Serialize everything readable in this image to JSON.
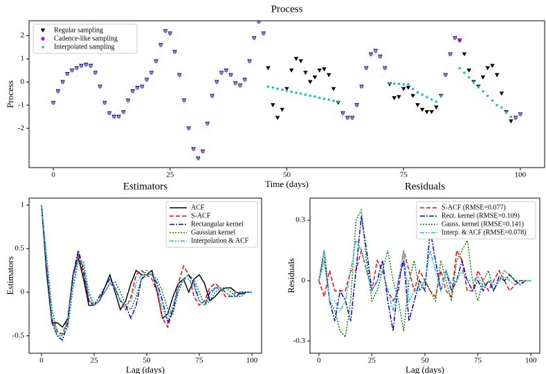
{
  "chart_data": [
    {
      "type": "scatter",
      "title": "Process",
      "xlabel": "Time (days)",
      "ylabel": "Process",
      "xlim": [
        -5.2,
        105.2
      ],
      "ylim": [
        -3.7,
        2.65
      ],
      "xticks": [
        0,
        25,
        50,
        75,
        100
      ],
      "yticks": [
        2,
        1,
        0,
        -1,
        -2
      ],
      "legend": "upper left",
      "series": [
        {
          "name": "Regular sampling",
          "color": "#000000",
          "marker": "triangle-down",
          "x": [
            0,
            1,
            2,
            3,
            4,
            5,
            6,
            7,
            8,
            9,
            10,
            11,
            12,
            13,
            14,
            15,
            16,
            17,
            18,
            19,
            20,
            21,
            22,
            23,
            24,
            25,
            26,
            27,
            28,
            29,
            30,
            31,
            32,
            33,
            34,
            35,
            36,
            37,
            38,
            39,
            40,
            41,
            42,
            43,
            44,
            45,
            46,
            47,
            48,
            49,
            50,
            51,
            52,
            53,
            54,
            55,
            56,
            57,
            58,
            59,
            60,
            61,
            62,
            63,
            64,
            65,
            66,
            67,
            68,
            69,
            70,
            71,
            72,
            73,
            74,
            75,
            76,
            77,
            78,
            79,
            80,
            81,
            82,
            83,
            84,
            85,
            86,
            87,
            88,
            89,
            90,
            91,
            92,
            93,
            94,
            95,
            96,
            97,
            98,
            99,
            100
          ],
          "values": [
            -0.9,
            -0.4,
            0,
            0.35,
            0.5,
            0.6,
            0.7,
            0.75,
            0.7,
            0.4,
            -0.2,
            -0.9,
            -1.35,
            -1.5,
            -1.5,
            -1.3,
            -0.8,
            -0.4,
            -0.25,
            -0.2,
            0.1,
            0.4,
            0.9,
            1.6,
            2.2,
            2.1,
            1.3,
            0.3,
            -0.8,
            -2.0,
            -2.9,
            -3.3,
            -3.0,
            -1.8,
            -0.6,
            0.0,
            0.4,
            0.5,
            0.3,
            -0.05,
            -0.15,
            0.1,
            0.9,
            1.9,
            2.6,
            2.1,
            0.6,
            -1.0,
            -1.55,
            -1.2,
            -0.3,
            0.5,
            1.0,
            0.9,
            0.4,
            0.0,
            0.2,
            0.5,
            0.55,
            0.3,
            -0.3,
            -0.9,
            -1.35,
            -1.55,
            -1.55,
            -1.0,
            -0.2,
            0.6,
            1.2,
            1.35,
            1.1,
            0.6,
            -0.1,
            -0.7,
            -0.65,
            -0.3,
            -0.25,
            -0.6,
            -1.0,
            -1.2,
            -1.3,
            -1.3,
            -1.1,
            -0.6,
            0.3,
            1.2,
            1.9,
            1.8,
            1.2,
            0.5,
            0.0,
            -0.2,
            0.2,
            0.6,
            0.7,
            0.3,
            -0.5,
            -1.3,
            -1.7,
            -1.55,
            -1.4
          ]
        },
        {
          "name": "Cadence-like sampling",
          "color": "#cc00cc",
          "marker": "circle",
          "x": [
            0,
            1,
            2,
            3,
            4,
            5,
            6,
            7,
            8,
            9,
            10,
            11,
            12,
            13,
            14,
            15,
            16,
            17,
            18,
            19,
            20,
            21,
            22,
            23,
            24,
            25,
            26,
            27,
            28,
            29,
            30,
            31,
            32,
            33,
            34,
            35,
            36,
            37,
            38,
            39,
            40,
            41,
            42,
            43,
            44,
            45,
            62,
            63,
            64,
            65,
            66,
            67,
            68,
            69,
            70,
            71,
            84,
            85,
            86,
            87,
            99,
            100
          ],
          "values": [
            -0.9,
            -0.4,
            0,
            0.35,
            0.5,
            0.6,
            0.7,
            0.75,
            0.7,
            0.4,
            -0.2,
            -0.9,
            -1.35,
            -1.5,
            -1.5,
            -1.3,
            -0.8,
            -0.4,
            -0.25,
            -0.2,
            0.1,
            0.4,
            0.9,
            1.6,
            2.2,
            2.1,
            1.3,
            0.3,
            -0.8,
            -2.0,
            -2.9,
            -3.3,
            -3.0,
            -1.8,
            -0.6,
            0.0,
            0.4,
            0.5,
            0.3,
            -0.05,
            -0.15,
            0.1,
            0.9,
            1.9,
            2.6,
            2.1,
            -1.35,
            -1.55,
            -1.55,
            -1.0,
            -0.2,
            0.6,
            1.2,
            1.35,
            1.1,
            0.6,
            0.3,
            1.2,
            1.9,
            1.8,
            -1.55,
            -1.4
          ]
        },
        {
          "name": "Interpolated sampling",
          "color": "#17becf",
          "marker": "square",
          "x": [
            0,
            1,
            2,
            3,
            4,
            5,
            6,
            7,
            8,
            9,
            10,
            11,
            12,
            13,
            14,
            15,
            16,
            17,
            18,
            19,
            20,
            21,
            22,
            23,
            24,
            25,
            26,
            27,
            28,
            29,
            30,
            31,
            32,
            33,
            34,
            35,
            36,
            37,
            38,
            39,
            40,
            41,
            42,
            43,
            44,
            45,
            46,
            47,
            48,
            49,
            50,
            51,
            52,
            53,
            54,
            55,
            56,
            57,
            58,
            59,
            60,
            61,
            62,
            63,
            64,
            65,
            66,
            67,
            68,
            69,
            70,
            71,
            72,
            73,
            74,
            75,
            76,
            77,
            78,
            79,
            80,
            81,
            82,
            83,
            84,
            85,
            86,
            87,
            88,
            89,
            90,
            91,
            92,
            93,
            94,
            95,
            96,
            97,
            98,
            99,
            100
          ],
          "values": [
            -0.9,
            -0.4,
            0,
            0.35,
            0.5,
            0.6,
            0.7,
            0.75,
            0.7,
            0.4,
            -0.2,
            -0.9,
            -1.35,
            -1.5,
            -1.5,
            -1.3,
            -0.8,
            -0.4,
            -0.25,
            -0.2,
            0.1,
            0.4,
            0.9,
            1.6,
            2.2,
            2.1,
            1.3,
            0.3,
            -0.8,
            -2.0,
            -2.9,
            -3.3,
            -3.0,
            -1.8,
            -0.6,
            0.0,
            0.4,
            0.5,
            0.3,
            -0.05,
            -0.15,
            0.1,
            0.9,
            1.9,
            2.6,
            2.1,
            -0.2,
            -0.24,
            -0.29,
            -0.33,
            -0.37,
            -0.42,
            -0.46,
            -0.5,
            -0.55,
            -0.59,
            -0.63,
            -0.68,
            -0.72,
            -0.76,
            -0.81,
            -0.85,
            -1.35,
            -1.55,
            -1.55,
            -1.0,
            -0.2,
            0.6,
            1.2,
            1.35,
            1.1,
            0.6,
            -0.05,
            -0.07,
            -0.08,
            -0.1,
            -0.1,
            -0.3,
            -0.45,
            -0.55,
            -0.65,
            -0.75,
            -0.85,
            -0.6,
            0.3,
            1.2,
            1.9,
            0.6,
            0.4,
            0.2,
            0.0,
            -0.2,
            -0.4,
            -0.6,
            -0.8,
            -1.0,
            -1.1,
            -1.3,
            -1.5,
            -1.55,
            -1.4
          ]
        }
      ]
    },
    {
      "type": "line",
      "title": "Estimators",
      "xlabel": "Lag (days)",
      "ylabel": "Estimators",
      "xlim": [
        -5.9,
        104.6
      ],
      "ylim": [
        -0.7,
        1.08
      ],
      "xticks": [
        0,
        25,
        50,
        75,
        100
      ],
      "yticks": [
        1,
        0.5,
        0,
        -0.5
      ],
      "legend": "upper right",
      "x": [
        0,
        2.5,
        5,
        7.5,
        10,
        12.5,
        15,
        17.5,
        20,
        22.5,
        25,
        27.5,
        30,
        32.5,
        35,
        37.5,
        40,
        42.5,
        45,
        47.5,
        50,
        52.5,
        55,
        57.5,
        60,
        62.5,
        65,
        67.5,
        70,
        72.5,
        75,
        77.5,
        80,
        82.5,
        85,
        87.5,
        90,
        92.5,
        95,
        97.5,
        100
      ],
      "series": [
        {
          "name": "ACF",
          "color": "#000000",
          "linestyle": "solid",
          "values": [
            1,
            0.2,
            -0.35,
            -0.35,
            -0.4,
            -0.3,
            0.2,
            0.4,
            0.15,
            -0.15,
            -0.15,
            -0.1,
            0.05,
            0.2,
            0.0,
            -0.2,
            -0.1,
            0.1,
            0.25,
            0.2,
            0.2,
            0.25,
            0.0,
            -0.3,
            -0.25,
            -0.05,
            0.1,
            0.15,
            0.0,
            0.15,
            0.2,
            0.1,
            -0.1,
            -0.05,
            0.02,
            0.05,
            0.05,
            0.0,
            -0.02,
            0.0,
            0.0
          ]
        },
        {
          "name": "S-ACF",
          "color": "#ff0000",
          "linestyle": "dashed",
          "values": [
            1,
            0.3,
            -0.3,
            -0.45,
            -0.48,
            -0.3,
            0.2,
            0.45,
            0.2,
            -0.1,
            -0.15,
            -0.1,
            0.0,
            0.1,
            0.05,
            -0.1,
            -0.2,
            -0.05,
            0.2,
            0.25,
            0.2,
            0.15,
            0.0,
            -0.3,
            -0.4,
            -0.2,
            0.1,
            0.3,
            0.2,
            -0.05,
            -0.15,
            -0.1,
            0.05,
            0.1,
            0.05,
            -0.05,
            -0.05,
            0.0,
            0.0,
            0.0,
            0.0
          ]
        },
        {
          "name": "Rectangular kernel",
          "color": "#0000cc",
          "linestyle": "dashdot",
          "values": [
            1,
            0.25,
            -0.35,
            -0.5,
            -0.55,
            -0.35,
            0.2,
            0.48,
            0.25,
            -0.1,
            -0.15,
            -0.05,
            0.05,
            0.15,
            0.05,
            -0.1,
            -0.15,
            -0.3,
            -0.15,
            0.15,
            0.2,
            0.2,
            0.1,
            -0.1,
            -0.35,
            -0.2,
            0.05,
            0.15,
            0.2,
            0.1,
            -0.1,
            -0.15,
            0.0,
            0.05,
            0.05,
            0.0,
            -0.05,
            -0.05,
            0.0,
            0.0,
            0.0
          ]
        },
        {
          "name": "Gaussian kernel",
          "color": "#008000",
          "linestyle": "dotted",
          "values": [
            1,
            0.4,
            -0.2,
            -0.45,
            -0.5,
            -0.4,
            0.05,
            0.35,
            0.35,
            0.0,
            -0.15,
            -0.1,
            0.0,
            0.1,
            0.12,
            0.0,
            -0.15,
            -0.2,
            -0.05,
            0.15,
            0.25,
            0.2,
            0.15,
            0.0,
            -0.2,
            -0.25,
            0.0,
            0.15,
            0.2,
            0.15,
            0.0,
            -0.15,
            -0.1,
            0.0,
            0.05,
            0.05,
            0.0,
            -0.05,
            -0.05,
            0.0,
            0.0
          ]
        },
        {
          "name": "Interpolation & ACF",
          "color": "#17becf",
          "linestyle": "dashdotdot",
          "values": [
            1,
            0.3,
            -0.3,
            -0.5,
            -0.5,
            -0.3,
            0.1,
            0.4,
            0.3,
            -0.05,
            -0.15,
            -0.1,
            0.0,
            0.1,
            0.05,
            -0.1,
            -0.15,
            -0.1,
            0.1,
            0.2,
            0.2,
            0.2,
            0.05,
            -0.2,
            -0.3,
            -0.15,
            0.05,
            0.15,
            0.15,
            0.05,
            -0.1,
            -0.15,
            -0.05,
            0.05,
            0.05,
            0.0,
            -0.05,
            0.0,
            0.0,
            0.0,
            0.0
          ]
        }
      ]
    },
    {
      "type": "line",
      "title": "Residuals",
      "xlabel": "Lag (days)",
      "ylabel": "Residuals",
      "xlim": [
        -4.2,
        104.2
      ],
      "ylim": [
        -0.36,
        0.41
      ],
      "xticks": [
        0,
        25,
        50,
        75,
        100
      ],
      "yticks": [
        0.3,
        0,
        -0.3
      ],
      "legend": "upper right",
      "x": [
        0,
        2.5,
        5,
        7.5,
        10,
        12.5,
        15,
        17.5,
        20,
        22.5,
        25,
        27.5,
        30,
        32.5,
        35,
        37.5,
        40,
        42.5,
        45,
        47.5,
        50,
        52.5,
        55,
        57.5,
        60,
        62.5,
        65,
        67.5,
        70,
        72.5,
        75,
        77.5,
        80,
        82.5,
        85,
        87.5,
        90,
        92.5,
        95,
        97.5,
        100
      ],
      "series": [
        {
          "name": "S-ACF (RMSE=0.077)",
          "color": "#ff0000",
          "linestyle": "dashed",
          "values": [
            0,
            -0.08,
            0.05,
            -0.05,
            -0.05,
            -0.05,
            0.05,
            0.05,
            0.15,
            0.05,
            -0.05,
            0.1,
            0.05,
            -0.05,
            -0.1,
            -0.05,
            0.15,
            0.05,
            -0.05,
            0.05,
            0.0,
            -0.05,
            -0.08,
            0.05,
            -0.05,
            -0.08,
            0.15,
            0.1,
            -0.05,
            -0.05,
            0.05,
            0.0,
            -0.05,
            0.0,
            0.05,
            0.0,
            -0.05,
            -0.02,
            0.0,
            0.0,
            0.0
          ]
        },
        {
          "name": "Rect. kernel (RMSE=0.109)",
          "color": "#0000cc",
          "linestyle": "dashdot",
          "values": [
            0,
            0.15,
            -0.1,
            -0.2,
            -0.05,
            -0.1,
            -0.2,
            0.05,
            0.32,
            0.15,
            -0.05,
            0.0,
            0.1,
            -0.1,
            -0.25,
            0.0,
            0.1,
            -0.2,
            -0.1,
            0.0,
            -0.05,
            0.25,
            0.1,
            -0.05,
            0.05,
            -0.05,
            0.0,
            0.1,
            0.0,
            -0.05,
            0.0,
            -0.05,
            0.0,
            -0.05,
            0.02,
            0.0,
            0.03,
            0.0,
            -0.02,
            0.0,
            0.0
          ]
        },
        {
          "name": "Gauss. kernel (RMSE=0.141)",
          "color": "#008000",
          "linestyle": "dotted",
          "values": [
            0,
            0.1,
            -0.1,
            -0.15,
            -0.25,
            -0.28,
            -0.1,
            0.3,
            0.35,
            0.1,
            -0.1,
            -0.05,
            0.05,
            0.15,
            0.0,
            -0.1,
            -0.25,
            0.0,
            0.1,
            -0.05,
            0.0,
            -0.05,
            -0.1,
            0.1,
            0.0,
            -0.1,
            0.1,
            0.15,
            0.2,
            0.0,
            -0.1,
            0.0,
            0.05,
            -0.05,
            0.0,
            0.05,
            0.03,
            0.0,
            0.0,
            0.0,
            0.0
          ]
        },
        {
          "name": "Interp. & ACF (RMSE=0.078)",
          "color": "#17becf",
          "linestyle": "dashdotdot",
          "values": [
            0,
            0.15,
            -0.1,
            -0.1,
            -0.15,
            -0.1,
            0.05,
            0.2,
            0.15,
            0.05,
            -0.05,
            0.0,
            0.05,
            -0.05,
            -0.15,
            0.0,
            0.15,
            -0.1,
            -0.05,
            -0.05,
            0.0,
            0.15,
            0.05,
            -0.05,
            0.05,
            -0.02,
            0.0,
            0.05,
            0.0,
            0.0,
            0.02,
            -0.03,
            0.0,
            -0.02,
            0.0,
            0.02,
            0.0,
            -0.02,
            -0.01,
            0.0,
            0.0
          ]
        }
      ]
    }
  ]
}
